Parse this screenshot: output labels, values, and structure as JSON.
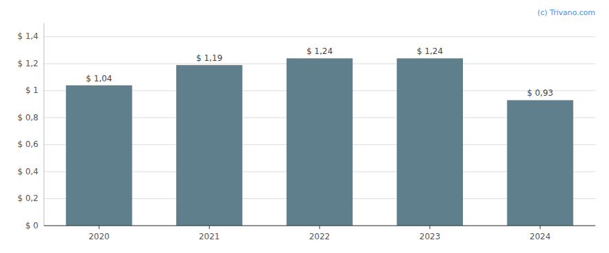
{
  "chart_data": {
    "type": "bar",
    "categories": [
      "2020",
      "2021",
      "2022",
      "2023",
      "2024"
    ],
    "values": [
      1.04,
      1.19,
      1.24,
      1.24,
      0.93
    ],
    "value_labels": [
      "$ 1,04",
      "$ 1,19",
      "$ 1,24",
      "$ 1,24",
      "$ 0,93"
    ],
    "data_labels": true,
    "color": "#5f7f8d",
    "ylim": [
      0,
      1.5
    ],
    "yticks": [
      {
        "value": 0,
        "label": "$ 0"
      },
      {
        "value": 0.2,
        "label": "$ 0,2"
      },
      {
        "value": 0.4,
        "label": "$ 0,4"
      },
      {
        "value": 0.6,
        "label": "$ 0,6"
      },
      {
        "value": 0.8,
        "label": "$ 0,8"
      },
      {
        "value": 1,
        "label": "$ 1"
      },
      {
        "value": 1.2,
        "label": "$ 1,2"
      },
      {
        "value": 1.4,
        "label": "$ 1,4"
      }
    ],
    "grid": true,
    "annotations": [
      {
        "text": "(c) Trivano.com",
        "color": "#4a90d9"
      }
    ]
  }
}
